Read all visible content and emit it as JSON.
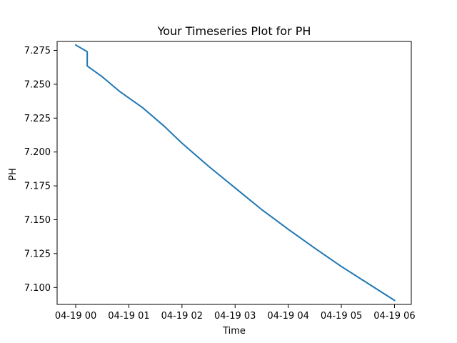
{
  "chart_data": {
    "type": "line",
    "title": "Your Timeseries Plot for PH",
    "xlabel": "Time",
    "ylabel": "PH",
    "x_ticks": [
      {
        "value": "2024-04-19T00:00",
        "label": "04-19 00"
      },
      {
        "value": "2024-04-19T01:00",
        "label": "04-19 01"
      },
      {
        "value": "2024-04-19T02:00",
        "label": "04-19 02"
      },
      {
        "value": "2024-04-19T03:00",
        "label": "04-19 03"
      },
      {
        "value": "2024-04-19T04:00",
        "label": "04-19 04"
      },
      {
        "value": "2024-04-19T05:00",
        "label": "04-19 05"
      },
      {
        "value": "2024-04-19T06:00",
        "label": "04-19 06"
      }
    ],
    "y_ticks": [
      7.1,
      7.125,
      7.15,
      7.175,
      7.2,
      7.225,
      7.25,
      7.275
    ],
    "xlim": [
      "2024-04-18T23:39",
      "2024-04-19T06:19"
    ],
    "ylim": [
      7.0875,
      7.2816
    ],
    "grid": false,
    "color": "#1f77b4",
    "series": [
      {
        "points": [
          [
            "2024-04-19T00:00",
            7.279
          ],
          [
            "2024-04-19T00:13",
            7.274
          ],
          [
            "2024-04-19T00:13",
            7.2635
          ],
          [
            "2024-04-19T00:30",
            7.2555
          ],
          [
            "2024-04-19T00:50",
            7.2445
          ],
          [
            "2024-04-19T01:15",
            7.233
          ],
          [
            "2024-04-19T01:40",
            7.219
          ],
          [
            "2024-04-19T02:00",
            7.2065
          ],
          [
            "2024-04-19T02:30",
            7.1895
          ],
          [
            "2024-04-19T03:00",
            7.1735
          ],
          [
            "2024-04-19T03:30",
            7.1575
          ],
          [
            "2024-04-19T04:00",
            7.143
          ],
          [
            "2024-04-19T04:30",
            7.129
          ],
          [
            "2024-04-19T05:00",
            7.1155
          ],
          [
            "2024-04-19T05:30",
            7.103
          ],
          [
            "2024-04-19T06:00",
            7.0905
          ]
        ]
      }
    ]
  }
}
